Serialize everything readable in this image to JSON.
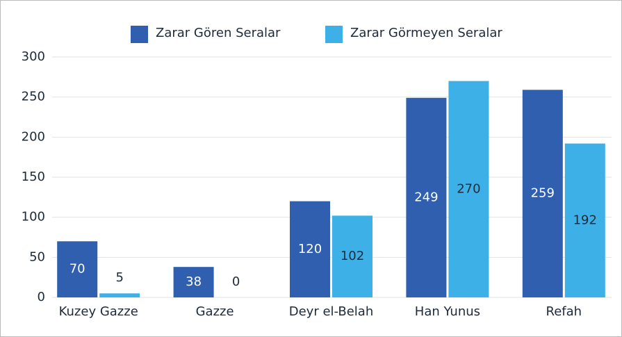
{
  "chart_data": {
    "type": "bar",
    "categories": [
      "Kuzey Gazze",
      "Gazze",
      "Deyr el-Belah",
      "Han Yunus",
      "Refah"
    ],
    "series": [
      {
        "name": "Zarar Gören Seralar",
        "color": "#2f5fae",
        "values": [
          70,
          38,
          120,
          249,
          259
        ]
      },
      {
        "name": "Zarar Görmeyen Seralar",
        "color": "#3db0e8",
        "values": [
          5,
          0,
          102,
          270,
          192
        ]
      }
    ],
    "ylim": [
      0,
      300
    ],
    "yticks": [
      0,
      50,
      100,
      150,
      200,
      250,
      300
    ],
    "grid": true,
    "legend": "top"
  }
}
